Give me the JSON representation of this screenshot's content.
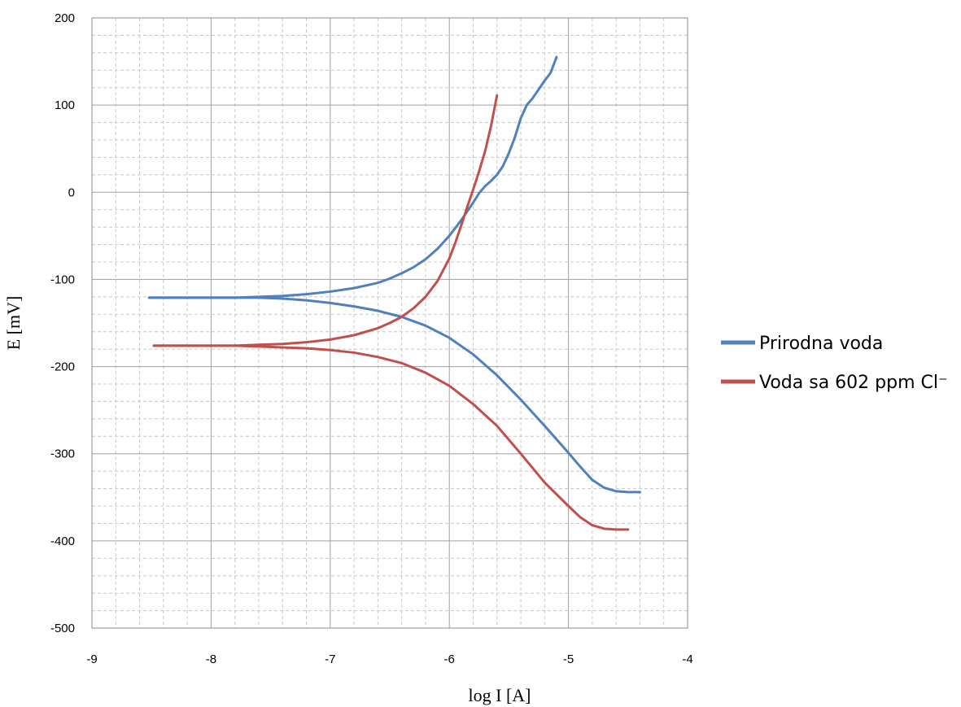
{
  "chart_data": {
    "type": "line",
    "xlabel": "log I [A]",
    "ylabel": "E [mV]",
    "xlim": [
      -9,
      -4
    ],
    "ylim": [
      -500,
      200
    ],
    "x_ticks": [
      -9,
      -8,
      -7,
      -6,
      -5,
      -4
    ],
    "y_ticks": [
      200,
      100,
      0,
      -100,
      -200,
      -300,
      -400,
      -500
    ],
    "grid": true,
    "minor_grid": true,
    "legend_position": "right",
    "series": [
      {
        "name": "Prirodna voda",
        "color": "#4F81BD",
        "branches": [
          {
            "x": [
              -8.52,
              -8.2,
              -8.0,
              -7.8,
              -7.6,
              -7.4,
              -7.2,
              -7.0,
              -6.8,
              -6.6,
              -6.5,
              -6.4,
              -6.3,
              -6.2,
              -6.1,
              -6.0,
              -5.9,
              -5.8,
              -5.75,
              -5.7,
              -5.65,
              -5.6,
              -5.55,
              -5.5,
              -5.45,
              -5.4,
              -5.35,
              -5.3,
              -5.25,
              -5.2,
              -5.15,
              -5.1
            ],
            "y": [
              -121,
              -121,
              -121,
              -121,
              -120,
              -119,
              -117,
              -114,
              -110,
              -104,
              -99,
              -93,
              -86,
              -77,
              -65,
              -50,
              -32,
              -12,
              -1,
              7,
              13,
              20,
              30,
              45,
              63,
              85,
              100,
              108,
              118,
              128,
              137,
              155
            ]
          },
          {
            "x": [
              -8.52,
              -8.2,
              -8.0,
              -7.8,
              -7.6,
              -7.4,
              -7.2,
              -7.0,
              -6.8,
              -6.6,
              -6.4,
              -6.2,
              -6.0,
              -5.8,
              -5.6,
              -5.4,
              -5.2,
              -5.0,
              -4.9,
              -4.8,
              -4.7,
              -4.6,
              -4.5,
              -4.4
            ],
            "y": [
              -121,
              -121,
              -121,
              -121,
              -121,
              -122,
              -124,
              -127,
              -131,
              -136,
              -143,
              -153,
              -167,
              -186,
              -210,
              -238,
              -268,
              -299,
              -315,
              -330,
              -339,
              -343,
              -344,
              -344
            ]
          }
        ]
      },
      {
        "name": "Voda sa 602 ppm Cl⁻",
        "color": "#C0504D",
        "branches": [
          {
            "x": [
              -8.48,
              -8.2,
              -8.0,
              -7.8,
              -7.6,
              -7.4,
              -7.2,
              -7.0,
              -6.8,
              -6.6,
              -6.5,
              -6.4,
              -6.3,
              -6.2,
              -6.1,
              -6.0,
              -5.95,
              -5.9,
              -5.85,
              -5.8,
              -5.75,
              -5.7,
              -5.65,
              -5.6
            ],
            "y": [
              -176,
              -176,
              -176,
              -176,
              -175,
              -174,
              -172,
              -169,
              -164,
              -156,
              -150,
              -143,
              -133,
              -120,
              -102,
              -76,
              -58,
              -38,
              -17,
              3,
              24,
              47,
              76,
              111
            ]
          },
          {
            "x": [
              -8.48,
              -8.2,
              -8.0,
              -7.8,
              -7.6,
              -7.4,
              -7.2,
              -7.0,
              -6.8,
              -6.6,
              -6.4,
              -6.2,
              -6.0,
              -5.8,
              -5.6,
              -5.4,
              -5.2,
              -5.0,
              -4.9,
              -4.8,
              -4.7,
              -4.6,
              -4.5
            ],
            "y": [
              -176,
              -176,
              -176,
              -176,
              -177,
              -178,
              -179,
              -181,
              -184,
              -189,
              -196,
              -207,
              -222,
              -243,
              -268,
              -300,
              -333,
              -360,
              -373,
              -382,
              -386,
              -387,
              -387
            ]
          }
        ]
      }
    ]
  }
}
